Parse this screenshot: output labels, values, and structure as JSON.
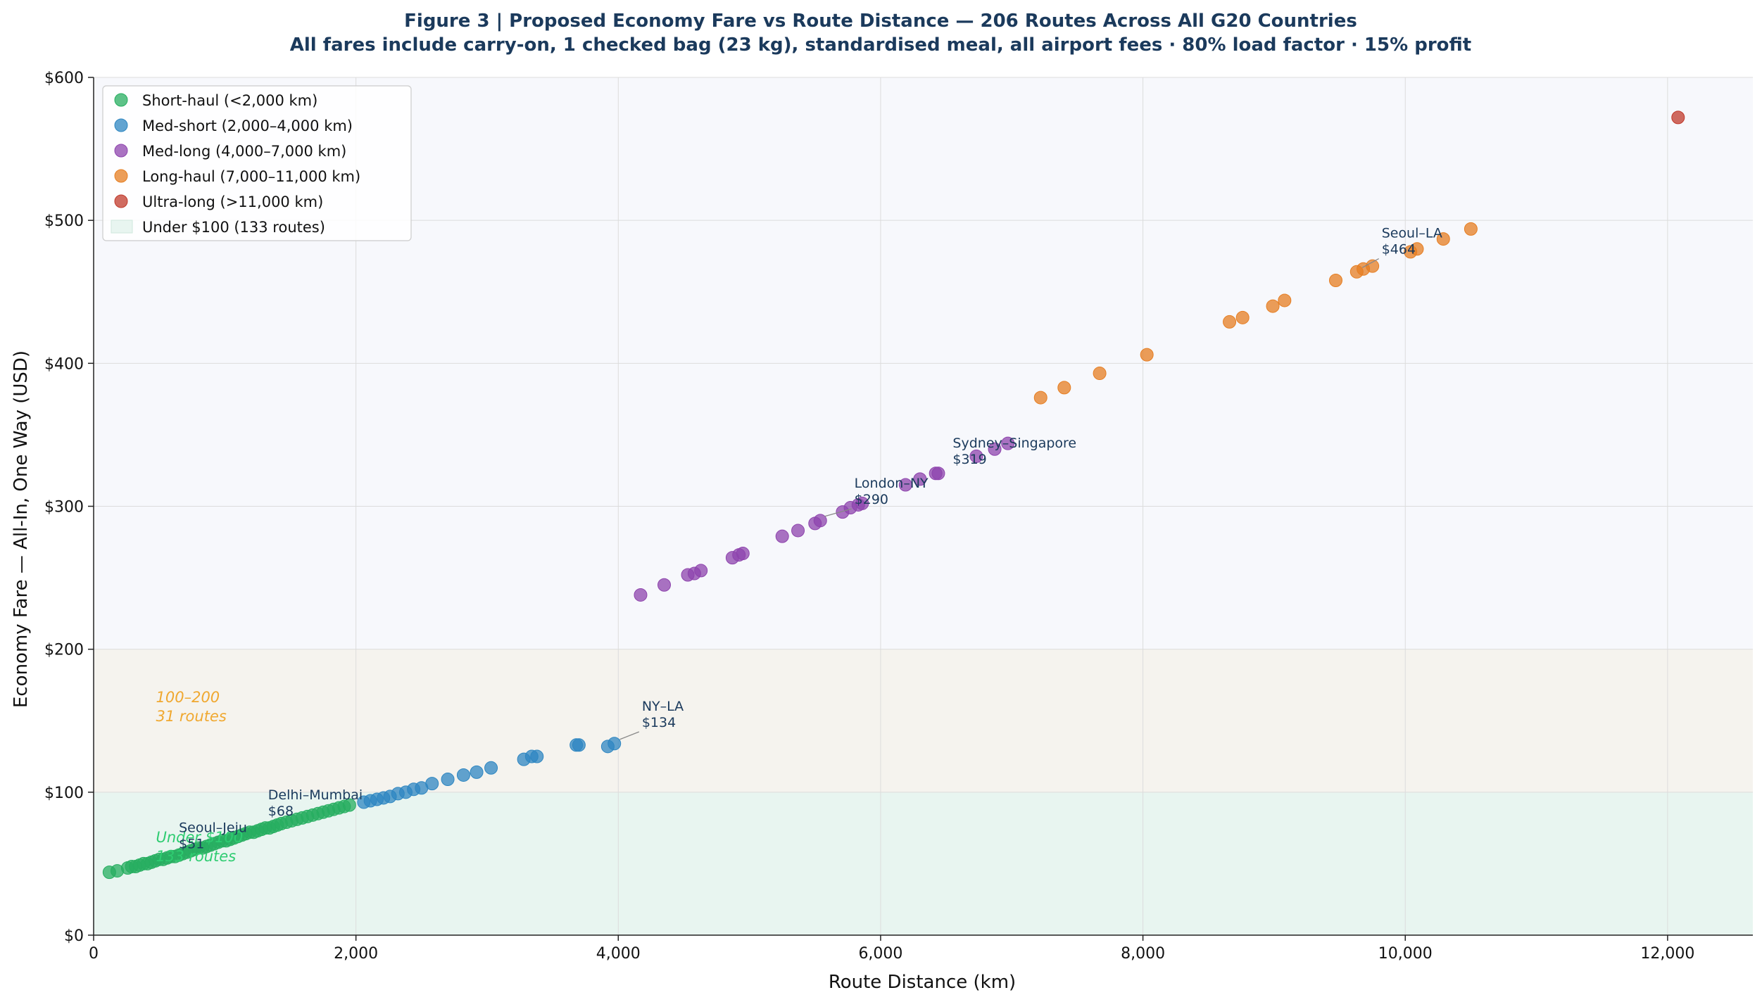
{
  "chart_data": {
    "type": "scatter",
    "title": "Figure 3  |  Proposed Economy Fare vs Route Distance  —  206 Routes Across All G20 Countries",
    "subtitle": "All fares include carry-on, 1 checked bag (23 kg), standardised meal, all airport fees · 80% load factor · 15% profit",
    "xlabel": "Route Distance (km)",
    "ylabel": "Economy Fare — All-In, One Way (USD)",
    "xlim": [
      0,
      12650
    ],
    "ylim": [
      0,
      600
    ],
    "xticks": [
      0,
      2000,
      4000,
      6000,
      8000,
      10000,
      12000
    ],
    "xtick_labels": [
      "0",
      "2,000",
      "4,000",
      "6,000",
      "8,000",
      "10,000",
      "12,000"
    ],
    "yticks": [
      0,
      100,
      200,
      300,
      400,
      500,
      600
    ],
    "ytick_labels": [
      "$0",
      "$100",
      "$200",
      "$300",
      "$400",
      "$500",
      "$600"
    ],
    "grid": true,
    "legend_position": "top-left",
    "bands": [
      {
        "name": "Under $100",
        "ymin": 0,
        "ymax": 100,
        "color": "#e8f5f0",
        "label_line1": "Under $100",
        "label_line2": "133 routes",
        "label_color": "#2ecc71"
      },
      {
        "name": "100–200",
        "ymin": 100,
        "ymax": 200,
        "color": "#f5f3ee",
        "label_line1": "100–200",
        "label_line2": "31 routes",
        "label_color": "#f0a830"
      },
      {
        "name": "over 200",
        "ymin": 200,
        "ymax": 600,
        "color": "#f7f8fc"
      }
    ],
    "series": [
      {
        "name": "Short-haul (<2,000 km)",
        "color": "#27ae60",
        "points": [
          [
            120,
            44
          ],
          [
            180,
            45
          ],
          [
            260,
            47
          ],
          [
            290,
            48
          ],
          [
            320,
            48
          ],
          [
            350,
            49
          ],
          [
            380,
            50
          ],
          [
            410,
            50
          ],
          [
            440,
            51
          ],
          [
            470,
            52
          ],
          [
            500,
            53
          ],
          [
            530,
            53
          ],
          [
            560,
            54
          ],
          [
            590,
            55
          ],
          [
            620,
            55
          ],
          [
            650,
            56
          ],
          [
            680,
            57
          ],
          [
            710,
            58
          ],
          [
            740,
            59
          ],
          [
            770,
            60
          ],
          [
            800,
            61
          ],
          [
            830,
            61
          ],
          [
            860,
            62
          ],
          [
            890,
            63
          ],
          [
            920,
            64
          ],
          [
            950,
            65
          ],
          [
            980,
            66
          ],
          [
            1010,
            66
          ],
          [
            1040,
            67
          ],
          [
            1070,
            68
          ],
          [
            1100,
            69
          ],
          [
            1130,
            70
          ],
          [
            1160,
            71
          ],
          [
            1190,
            72
          ],
          [
            1220,
            72
          ],
          [
            1250,
            73
          ],
          [
            1280,
            74
          ],
          [
            1310,
            75
          ],
          [
            1340,
            75
          ],
          [
            1370,
            76
          ],
          [
            1400,
            77
          ],
          [
            1430,
            78
          ],
          [
            1470,
            79
          ],
          [
            1510,
            80
          ],
          [
            1550,
            81
          ],
          [
            1590,
            82
          ],
          [
            1630,
            83
          ],
          [
            1670,
            84
          ],
          [
            1710,
            85
          ],
          [
            1750,
            86
          ],
          [
            1790,
            87
          ],
          [
            1830,
            88
          ],
          [
            1870,
            89
          ],
          [
            1910,
            90
          ],
          [
            1950,
            91
          ]
        ]
      },
      {
        "name": "Med-short (2,000–4,000 km)",
        "color": "#2e86c1",
        "points": [
          [
            2060,
            93
          ],
          [
            2110,
            94
          ],
          [
            2160,
            95
          ],
          [
            2210,
            96
          ],
          [
            2260,
            97
          ],
          [
            2320,
            99
          ],
          [
            2380,
            100
          ],
          [
            2440,
            102
          ],
          [
            2500,
            103
          ],
          [
            2580,
            106
          ],
          [
            2700,
            109
          ],
          [
            2820,
            112
          ],
          [
            2920,
            114
          ],
          [
            3030,
            117
          ],
          [
            3280,
            123
          ],
          [
            3340,
            125
          ],
          [
            3380,
            125
          ],
          [
            3680,
            133
          ],
          [
            3700,
            133
          ],
          [
            3920,
            132
          ],
          [
            3970,
            134
          ]
        ]
      },
      {
        "name": "Med-long (4,000–7,000 km)",
        "color": "#8e44ad",
        "points": [
          [
            4170,
            238
          ],
          [
            4350,
            245
          ],
          [
            4530,
            252
          ],
          [
            4580,
            253
          ],
          [
            4630,
            255
          ],
          [
            4870,
            264
          ],
          [
            4920,
            266
          ],
          [
            4950,
            267
          ],
          [
            5250,
            279
          ],
          [
            5370,
            283
          ],
          [
            5500,
            288
          ],
          [
            5540,
            290
          ],
          [
            5710,
            296
          ],
          [
            5770,
            299
          ],
          [
            5830,
            301
          ],
          [
            5860,
            302
          ],
          [
            6190,
            315
          ],
          [
            6300,
            319
          ],
          [
            6420,
            323
          ],
          [
            6440,
            323
          ],
          [
            6730,
            335
          ],
          [
            6870,
            340
          ],
          [
            6970,
            344
          ]
        ]
      },
      {
        "name": "Long-haul (7,000–11,000 km)",
        "color": "#e67e22",
        "points": [
          [
            7220,
            376
          ],
          [
            7400,
            383
          ],
          [
            7670,
            393
          ],
          [
            8030,
            406
          ],
          [
            8660,
            429
          ],
          [
            8760,
            432
          ],
          [
            8990,
            440
          ],
          [
            9080,
            444
          ],
          [
            9470,
            458
          ],
          [
            9630,
            464
          ],
          [
            9680,
            466
          ],
          [
            9750,
            468
          ],
          [
            10040,
            478
          ],
          [
            10090,
            480
          ],
          [
            10290,
            487
          ],
          [
            10500,
            494
          ]
        ]
      },
      {
        "name": "Ultra-long (>11,000 km)",
        "color": "#c0392b",
        "points": [
          [
            12080,
            572
          ]
        ]
      }
    ],
    "legend_band_entry": "Under $100 (133 routes)",
    "annotations": [
      {
        "route": "Seoul–Jeju",
        "fare": "$51",
        "point": [
          700,
          51
        ],
        "text_at": [
          650,
          72
        ],
        "leader": false
      },
      {
        "route": "Delhi–Mumbai",
        "fare": "$68",
        "point": [
          1300,
          68
        ],
        "text_at": [
          1330,
          95
        ],
        "leader": false
      },
      {
        "route": "NY–LA",
        "fare": "$134",
        "point": [
          3980,
          134
        ],
        "text_at": [
          4180,
          157
        ],
        "leader": true
      },
      {
        "route": "London–NY",
        "fare": "$290",
        "point": [
          5540,
          290
        ],
        "text_at": [
          5800,
          313
        ],
        "leader": true
      },
      {
        "route": "Sydney–Singapore",
        "fare": "$319",
        "point": [
          6350,
          319
        ],
        "text_at": [
          6550,
          341
        ],
        "leader": false
      },
      {
        "route": "Seoul–LA",
        "fare": "$464",
        "point": [
          9640,
          464
        ],
        "text_at": [
          9820,
          488
        ],
        "leader": true
      }
    ]
  }
}
